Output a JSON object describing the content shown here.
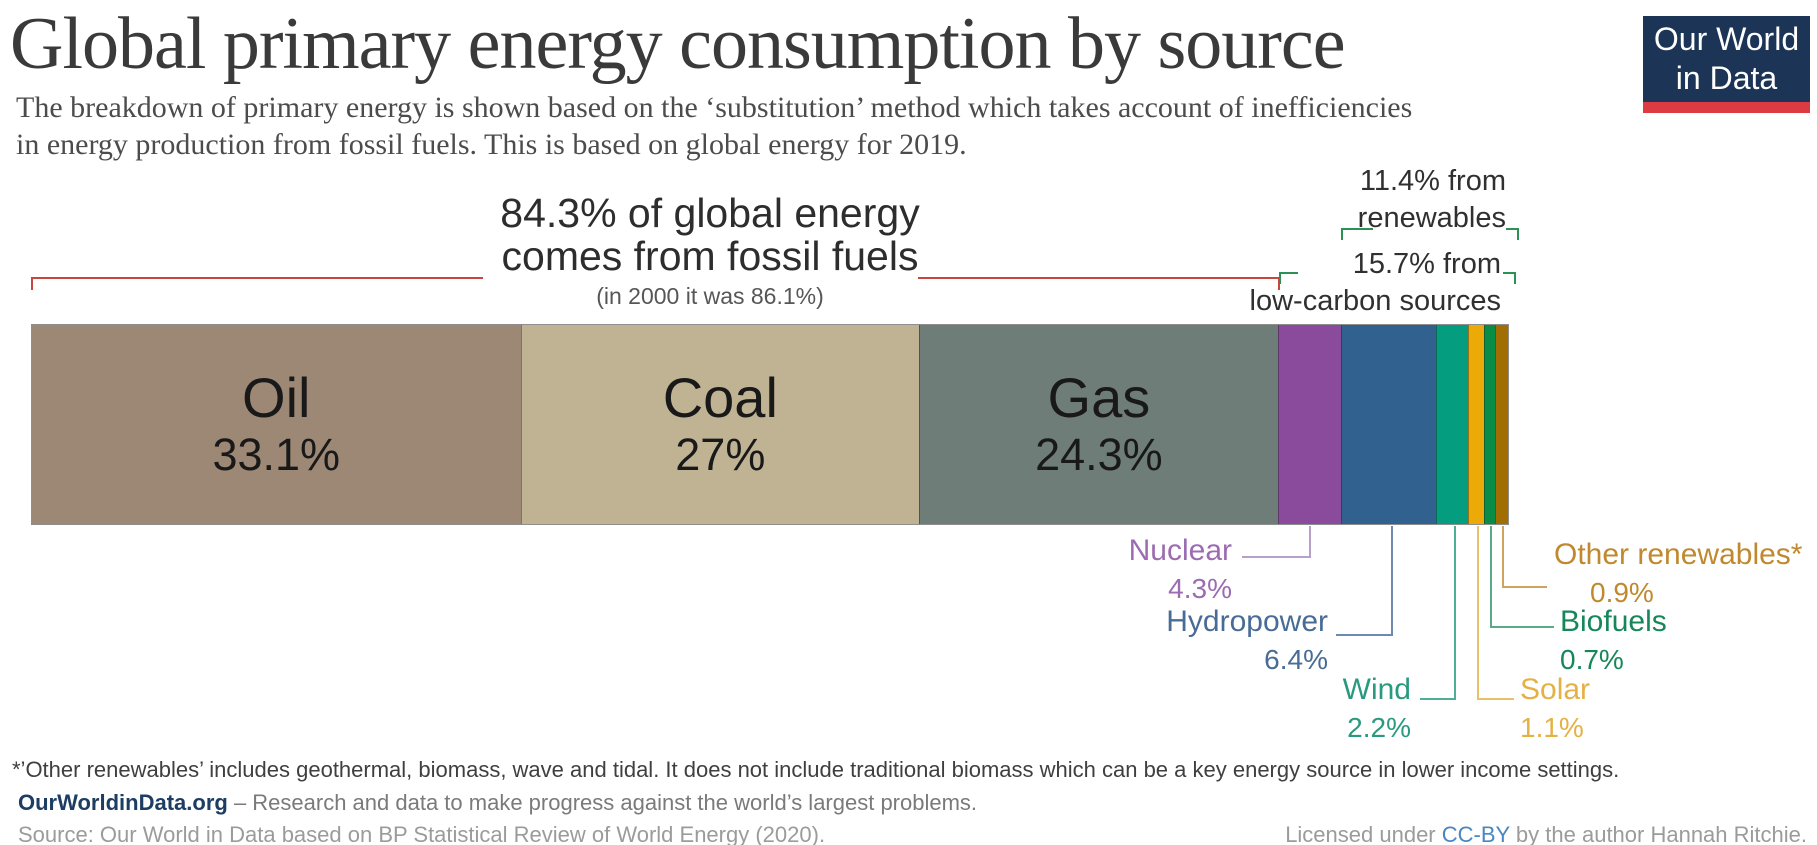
{
  "header": {
    "title": "Global primary energy consumption by source",
    "subtitle_line1": "The breakdown of primary energy is shown based on the ‘substitution’ method which takes account of inefficiencies",
    "subtitle_line2": "in energy production from fossil fuels. This is based on global energy for 2019.",
    "logo": {
      "line1": "Our World",
      "line2": "in Data",
      "bg": "#1c3556",
      "accent": "#dc3b41"
    }
  },
  "annotations": {
    "fossil": {
      "line1": "84.3% of global energy",
      "line2": "comes from fossil fuels",
      "note": "(in 2000 it was 86.1%)",
      "bracket_color": "#c8463f"
    },
    "renewables": {
      "line1": "11.4% from",
      "line2": "renewables",
      "bracket_color": "#2c9155"
    },
    "low_carbon": {
      "line1": "15.7% from",
      "line2": "low-carbon sources",
      "bracket_color": "#2c9155"
    }
  },
  "chart_data": {
    "type": "bar",
    "orientation": "horizontal-stacked",
    "title": "Global primary energy consumption by source",
    "unit": "%",
    "year_shown": "2019",
    "xlim": [
      0,
      100
    ],
    "categories": [
      "Oil",
      "Coal",
      "Gas",
      "Nuclear",
      "Hydropower",
      "Wind",
      "Solar",
      "Biofuels",
      "Other renewables*"
    ],
    "values": [
      33.1,
      27,
      24.3,
      4.3,
      6.4,
      2.2,
      1.1,
      0.7,
      0.9
    ],
    "segments": [
      {
        "name": "Oil",
        "value": 33.1,
        "pct_label": "33.1%",
        "color": "#9c8874",
        "in_bar_label": true
      },
      {
        "name": "Coal",
        "value": 27,
        "pct_label": "27%",
        "color": "#c0b394",
        "in_bar_label": true
      },
      {
        "name": "Gas",
        "value": 24.3,
        "pct_label": "24.3%",
        "color": "#6f7d78",
        "in_bar_label": true
      },
      {
        "name": "Nuclear",
        "value": 4.3,
        "pct_label": "4.3%",
        "color": "#8a4b9d",
        "label_color": "#9c6bb1",
        "line_color": "#b9a0ca"
      },
      {
        "name": "Hydropower",
        "value": 6.4,
        "pct_label": "6.4%",
        "color": "#31618e",
        "label_color": "#486c95",
        "line_color": "#6d89ad"
      },
      {
        "name": "Wind",
        "value": 2.2,
        "pct_label": "2.2%",
        "color": "#049d80",
        "label_color": "#2a9a7e",
        "line_color": "#4fae97"
      },
      {
        "name": "Solar",
        "value": 1.1,
        "pct_label": "1.1%",
        "color": "#ecaa09",
        "label_color": "#e4b244",
        "line_color": "#e9c06a"
      },
      {
        "name": "Biofuels",
        "value": 0.7,
        "pct_label": "0.7%",
        "color": "#098c46",
        "label_color": "#17875a",
        "line_color": "#58ab84"
      },
      {
        "name": "Other renewables*",
        "value": 0.9,
        "pct_label": "0.9%",
        "color": "#a16e04",
        "label_color": "#c0892f",
        "line_color": "#d0a45c"
      }
    ]
  },
  "footer": {
    "footnote": "*’Other renewables’  includes geothermal, biomass, wave and tidal. It does not include traditional biomass which can be a key energy source in lower income settings.",
    "owid_link": "OurWorldinData.org",
    "owid_tagline": " – Research and data to make progress against the world’s largest problems.",
    "owid_link_color": "#1d3d63",
    "source": "Source: Our World in Data based on BP Statistical Review of World Energy (2020).",
    "license_prefix": "Licensed under ",
    "license_link": "CC-BY",
    "license_suffix": " by the author Hannah Ritchie.",
    "license_link_color": "#4a86c0"
  }
}
